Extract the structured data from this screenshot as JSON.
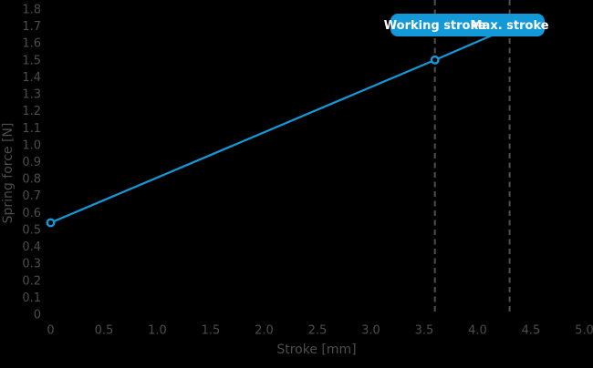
{
  "colors": {
    "background": "#000000",
    "axis_text": "#4d4d4d",
    "dashed_line": "#4f4f4f",
    "accent_blue": "#1499d8",
    "label_text": "#ffffff"
  },
  "chart_data": {
    "type": "line",
    "title": "",
    "xlabel": "Stroke [mm]",
    "ylabel": "Spring force [N]",
    "xlim": [
      0,
      5.0
    ],
    "ylim": [
      0,
      1.8
    ],
    "grid": false,
    "legend_position": "none",
    "x_tick_labels": [
      "0",
      "0.5",
      "1.0",
      "1.5",
      "2.0",
      "2.5",
      "3.0",
      "3.5",
      "4.0",
      "4.5",
      "5.0"
    ],
    "y_tick_labels": [
      "0",
      "0.1",
      "0.2",
      "0.3",
      "0.4",
      "0.5",
      "0.6",
      "0.7",
      "0.8",
      "0.9",
      "1.0",
      "1.1",
      "1.2",
      "1.3",
      "1.4",
      "1.5",
      "1.6",
      "1.7",
      "1.8"
    ],
    "series": [
      {
        "name": "spring-force",
        "color": "#1499d8",
        "points": [
          [
            0,
            0.54
          ],
          [
            3.6,
            1.5
          ],
          [
            4.3,
            1.69
          ]
        ],
        "marker_points": [
          [
            0,
            0.54
          ],
          [
            3.6,
            1.5
          ]
        ],
        "marker": "open-circle"
      }
    ],
    "annotations": {
      "vlines": [
        {
          "x": 3.6,
          "label": "Working stroke"
        },
        {
          "x": 4.3,
          "label": "Max. stroke"
        }
      ],
      "vline_style": "dashed",
      "vline_color": "#4f4f4f",
      "label_box_color": "#1499d8",
      "label_text_color": "#ffffff"
    }
  }
}
